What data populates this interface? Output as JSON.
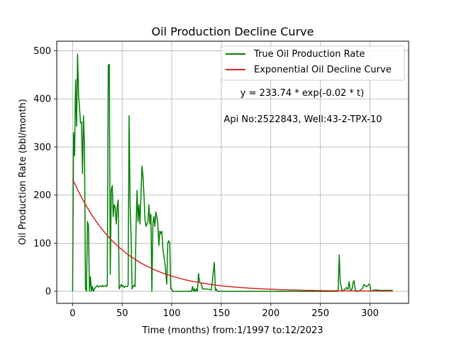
{
  "chart_data": {
    "type": "line",
    "title": "Oil Production Decline Curve",
    "xlabel": "Time (months) from:1/1997 to:12/2023",
    "ylabel": "Oil Production Rate (bbl/month)",
    "xlim": [
      -16,
      339
    ],
    "ylim": [
      -25,
      520
    ],
    "xticks": [
      0,
      50,
      100,
      150,
      200,
      250,
      300
    ],
    "yticks": [
      0,
      100,
      200,
      300,
      400,
      500
    ],
    "grid": true,
    "legend_position": "top-right",
    "annotations": {
      "equation": "y = 233.74 * exp(-0.02 * t)",
      "well": "Api No:2522843, Well:43-2-TPX-10"
    },
    "colors": {
      "true_rate": "#008000",
      "decline_curve": "#d62728"
    },
    "series": [
      {
        "name": "True Oil Production Rate",
        "x": [
          0,
          1,
          2,
          3,
          4,
          5,
          6,
          7,
          8,
          9,
          10,
          11,
          12,
          13,
          14,
          15,
          16,
          17,
          18,
          19,
          20,
          21,
          22,
          23,
          24,
          25,
          26,
          27,
          28,
          29,
          30,
          31,
          32,
          33,
          34,
          35,
          36,
          37,
          38,
          39,
          40,
          41,
          42,
          43,
          44,
          45,
          46,
          47,
          48,
          49,
          50,
          51,
          52,
          53,
          54,
          55,
          56,
          57,
          58,
          59,
          60,
          61,
          62,
          63,
          64,
          65,
          66,
          67,
          68,
          69,
          70,
          71,
          72,
          73,
          74,
          75,
          76,
          77,
          78,
          79,
          80,
          81,
          82,
          83,
          84,
          85,
          86,
          87,
          88,
          89,
          90,
          91,
          92,
          93,
          94,
          95,
          96,
          97,
          98,
          99,
          100,
          101,
          102,
          103,
          104,
          105,
          106,
          107,
          108,
          109,
          110,
          115,
          120,
          121,
          122,
          123,
          124,
          125,
          126,
          127,
          128,
          129,
          130,
          131,
          135,
          140,
          143,
          144,
          145,
          146,
          147,
          150,
          160,
          170,
          180,
          190,
          200,
          210,
          220,
          230,
          240,
          250,
          260,
          265,
          267,
          268,
          269,
          270,
          272,
          275,
          276,
          277,
          278,
          279,
          280,
          281,
          282,
          283,
          284,
          285,
          286,
          287,
          288,
          290,
          292,
          294,
          296,
          298,
          299,
          300,
          301,
          305,
          310,
          315,
          320,
          323
        ],
        "values": [
          0,
          330,
          282,
          440,
          343,
          493,
          408,
          380,
          350,
          352,
          245,
          365,
          300,
          5,
          0,
          145,
          137,
          0,
          30,
          0,
          10,
          0,
          5,
          8,
          10,
          12,
          9,
          10,
          11,
          10,
          12,
          10,
          11,
          12,
          10,
          12,
          470,
          472,
          35,
          210,
          220,
          155,
          180,
          175,
          140,
          175,
          190,
          5,
          10,
          14,
          10,
          12,
          8,
          10,
          10,
          10,
          12,
          365,
          180,
          115,
          5,
          10,
          13,
          10,
          130,
          210,
          145,
          180,
          140,
          200,
          260,
          240,
          200,
          150,
          135,
          140,
          145,
          180,
          140,
          160,
          0,
          140,
          155,
          135,
          165,
          155,
          140,
          95,
          125,
          120,
          125,
          90,
          75,
          60,
          40,
          15,
          100,
          105,
          100,
          5,
          5,
          0,
          0,
          0,
          0,
          0,
          0,
          0,
          0,
          0,
          0,
          0,
          0,
          10,
          0,
          5,
          0,
          5,
          0,
          37,
          20,
          18,
          15,
          5,
          5,
          3,
          60,
          2,
          5,
          0,
          0,
          0,
          0,
          0,
          0,
          0,
          0,
          0,
          0,
          0,
          0,
          0,
          0,
          0,
          0,
          5,
          76,
          20,
          0,
          5,
          8,
          5,
          5,
          20,
          5,
          2,
          5,
          18,
          22,
          5,
          0,
          0,
          0,
          2,
          5,
          14,
          10,
          12,
          15,
          13,
          0,
          3,
          2,
          2,
          2,
          2
        ],
        "color": "#008000"
      },
      {
        "name": "Exponential Oil Decline Curve",
        "x": [
          0,
          5,
          10,
          15,
          20,
          25,
          30,
          35,
          40,
          45,
          50,
          55,
          60,
          65,
          70,
          75,
          80,
          85,
          90,
          95,
          100,
          105,
          110,
          115,
          120,
          125,
          130,
          135,
          140,
          145,
          150,
          155,
          160,
          165,
          170,
          175,
          180,
          185,
          190,
          195,
          200,
          205,
          210,
          215,
          220,
          225,
          230,
          235,
          240,
          245,
          250,
          255,
          260,
          265,
          270,
          275,
          280,
          285,
          290,
          295,
          300,
          305,
          310,
          315,
          320,
          323
        ],
        "values": [
          233.7,
          211.5,
          191.4,
          173.2,
          156.7,
          141.8,
          128.3,
          116.1,
          105.0,
          95.0,
          86.0,
          77.8,
          70.4,
          63.7,
          57.6,
          52.2,
          47.2,
          42.7,
          38.6,
          35.0,
          31.6,
          28.6,
          25.9,
          23.4,
          21.2,
          19.2,
          17.4,
          15.7,
          14.2,
          12.9,
          11.6,
          10.5,
          9.5,
          8.6,
          7.8,
          7.1,
          6.4,
          5.8,
          5.2,
          4.7,
          4.3,
          3.9,
          3.5,
          3.2,
          2.9,
          2.6,
          2.4,
          2.1,
          1.9,
          1.7,
          1.6,
          1.4,
          1.3,
          1.2,
          1.05,
          0.95,
          0.86,
          0.78,
          0.7,
          0.64,
          0.58,
          0.52,
          0.47,
          0.43,
          0.39,
          0.36
        ],
        "color": "#d62728"
      }
    ]
  }
}
